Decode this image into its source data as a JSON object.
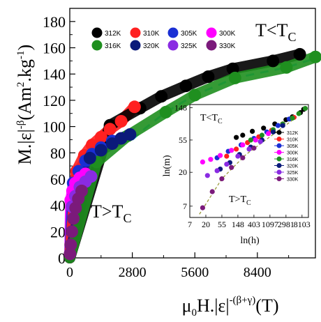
{
  "chart_data": [
    {
      "type": "scatter",
      "ylabel": {
        "main": "M.|ε|",
        "exp": "-β",
        "unit": "(Am",
        "unit_exp": "2",
        "unit_mid": ".kg",
        "unit_exp2": "-1",
        "unit_end": ")"
      },
      "xlabel": {
        "main": "μ",
        "sub": "0",
        "rest": "H.|ε|",
        "exp": "-(β+γ)",
        "unit": "(T)"
      },
      "xlim": [
        0,
        11000
      ],
      "ylim": [
        0,
        190
      ],
      "xticks": [
        0,
        2800,
        5600,
        8400
      ],
      "yticks": [
        0,
        20,
        40,
        60,
        80,
        100,
        120,
        140,
        160,
        180
      ],
      "annotations": [
        {
          "main": "T<T",
          "sub": "C",
          "where": "top-right"
        },
        {
          "main": "T>T",
          "sub": "C",
          "where": "bottom-left"
        }
      ],
      "legend_position": "top",
      "series": [
        {
          "name": "312K",
          "color": "#000000",
          "x": [
            1800,
            3150,
            4100,
            5200,
            6200,
            7300,
            9100,
            10300
          ],
          "y": [
            101,
            114,
            123,
            131,
            138,
            144,
            150,
            155
          ]
        },
        {
          "name": "310K",
          "color": "#ff2020",
          "x": [
            300,
            650,
            1000,
            1400,
            1800,
            2300,
            2900
          ],
          "y": [
            66,
            78,
            86,
            92,
            98,
            104,
            115
          ]
        },
        {
          "name": "305K",
          "color": "#1a2fd4",
          "x": [
            150,
            400,
            700,
            1000,
            1400,
            1900
          ],
          "y": [
            57,
            66,
            74,
            79,
            84,
            89
          ]
        },
        {
          "name": "300K",
          "color": "#ff00ff",
          "x": [
            40,
            120,
            250,
            450,
            700
          ],
          "y": [
            44,
            51,
            57,
            61,
            64
          ]
        },
        {
          "name": "316K",
          "color": "#1f8f1f",
          "x": [
            1200,
            2600,
            4300,
            5600,
            7400,
            9700,
            11000
          ],
          "y": [
            73,
            93,
            111,
            124,
            137,
            145,
            153
          ]
        },
        {
          "name": "320K",
          "color": "#0b1a7a",
          "x": [
            900,
            1400,
            1900,
            2300,
            2700
          ],
          "y": [
            76,
            82,
            87,
            91,
            94
          ]
        },
        {
          "name": "325K",
          "color": "#8a2be2",
          "x": [
            100,
            250,
            450,
            700,
            950
          ],
          "y": [
            39,
            47,
            54,
            58,
            62
          ]
        },
        {
          "name": "330K",
          "color": "#7b1a7b",
          "x": [
            10,
            40,
            90,
            160,
            260,
            380,
            530
          ],
          "y": [
            3,
            10,
            20,
            30,
            38,
            45,
            51
          ]
        }
      ],
      "fits": [
        {
          "color": "#22d3ee",
          "dash": true,
          "x": [
            2800,
            3400,
            4300,
            5600,
            7400,
            9700,
            11000
          ],
          "y": [
            90,
            99,
            111,
            124,
            137,
            145,
            152
          ]
        }
      ]
    },
    {
      "type": "scatter",
      "scale": "log",
      "xlabel": "ln(h)",
      "ylabel": "ln(m)",
      "xticks": [
        "7",
        "20",
        "55",
        "148",
        "403",
        "1097",
        "2981",
        "8103"
      ],
      "yticks": [
        "7",
        "20",
        "55",
        "148"
      ],
      "annotations": [
        {
          "main": "T<T",
          "sub": "C"
        },
        {
          "main": "T>T",
          "sub": "C"
        }
      ],
      "legend_position": "right",
      "series": [
        {
          "name": "312K",
          "color": "#000000",
          "x": [
            4.9,
            5.3,
            5.9,
            6.6,
            7.3,
            8.0,
            8.4,
            8.9,
            9.1
          ],
          "y": [
            4.08,
            4.15,
            4.27,
            4.37,
            4.5,
            4.63,
            4.72,
            4.85,
            4.95
          ]
        },
        {
          "name": "310K",
          "color": "#ff2020",
          "x": [
            4.3,
            4.9,
            5.6,
            6.3,
            7.1,
            7.8,
            8.5
          ],
          "y": [
            3.5,
            3.72,
            3.92,
            4.1,
            4.3,
            4.5,
            4.7
          ]
        },
        {
          "name": "305K",
          "color": "#1a2fd4",
          "x": [
            3.7,
            4.4,
            5.2,
            6.0,
            6.8,
            7.5,
            8.2
          ],
          "y": [
            3.45,
            3.65,
            3.85,
            4.05,
            4.25,
            4.45,
            4.65
          ]
        },
        {
          "name": "300K",
          "color": "#ff00ff",
          "x": [
            2.8,
            3.3,
            3.9,
            4.6,
            5.3,
            6.1,
            6.9
          ],
          "y": [
            3.32,
            3.4,
            3.52,
            3.68,
            3.85,
            4.0,
            4.2
          ]
        },
        {
          "name": "316K",
          "color": "#1f8f1f",
          "x": [
            5.8,
            6.5,
            7.2,
            7.8,
            8.4,
            8.8,
            9.2
          ],
          "y": [
            4.0,
            4.15,
            4.32,
            4.5,
            4.68,
            4.82,
            4.98
          ]
        },
        {
          "name": "320K",
          "color": "#0b1a7a",
          "x": [
            3.9,
            4.5,
            5.1,
            5.8,
            6.5,
            7.2,
            7.8
          ],
          "y": [
            3.1,
            3.3,
            3.55,
            3.78,
            4.0,
            4.25,
            4.45
          ]
        },
        {
          "name": "325K",
          "color": "#8a2be2",
          "x": [
            3.1,
            3.7,
            4.3,
            5.0,
            5.7,
            6.4
          ],
          "y": [
            2.9,
            3.05,
            3.25,
            3.5,
            3.72,
            3.95
          ]
        },
        {
          "name": "330K",
          "color": "#7b1a7b",
          "x": [
            2.8,
            3.4,
            4.0,
            4.6,
            5.3,
            6.0
          ],
          "y": [
            1.9,
            2.4,
            2.8,
            3.15,
            3.45,
            3.75
          ]
        }
      ],
      "fits": [
        {
          "color": "#9a9a3a",
          "dash": true,
          "x": [
            2.6,
            4.0,
            5.5,
            7.0,
            8.5,
            9.3
          ],
          "y": [
            1.7,
            2.8,
            3.55,
            4.1,
            4.65,
            5.0
          ]
        }
      ]
    }
  ]
}
